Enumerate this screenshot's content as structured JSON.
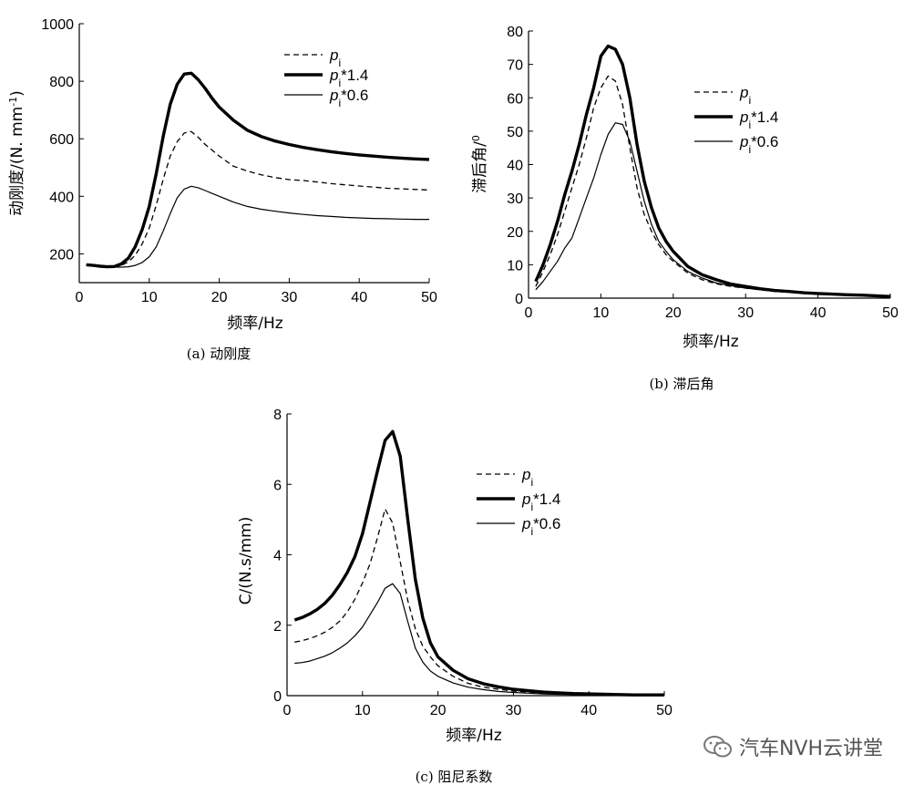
{
  "chart_data": [
    {
      "type": "line",
      "caption": "(a) 动刚度",
      "xlabel": "频率/Hz",
      "ylabel": "动刚度/(N. mm-1)",
      "ylabel_main": "动刚度/(N. mm",
      "ylabel_sup": "-1",
      "ylabel_tail": ")",
      "xlim": [
        0,
        50
      ],
      "ylim": [
        100,
        1000
      ],
      "xticks": [
        0,
        10,
        20,
        30,
        40,
        50
      ],
      "yticks": [
        200,
        400,
        600,
        800,
        1000
      ],
      "legend": [
        "p_i",
        "p_i*1.4",
        "p_i*0.6"
      ],
      "series": [
        {
          "name": "p_i",
          "style": "dashed",
          "x": [
            1,
            2,
            3,
            4,
            5,
            6,
            7,
            8,
            9,
            10,
            11,
            12,
            13,
            14,
            15,
            16,
            17,
            18,
            19,
            20,
            22,
            24,
            26,
            28,
            30,
            32,
            34,
            36,
            38,
            40,
            42,
            44,
            46,
            48,
            50
          ],
          "values": [
            162,
            160,
            157,
            155,
            155,
            160,
            172,
            195,
            235,
            290,
            370,
            460,
            540,
            590,
            620,
            625,
            605,
            580,
            560,
            540,
            505,
            488,
            475,
            465,
            458,
            455,
            450,
            444,
            440,
            436,
            432,
            428,
            426,
            424,
            422
          ]
        },
        {
          "name": "p_i*1.4",
          "style": "thick",
          "x": [
            1,
            2,
            3,
            4,
            5,
            6,
            7,
            8,
            9,
            10,
            11,
            12,
            13,
            14,
            15,
            16,
            17,
            18,
            19,
            20,
            22,
            24,
            26,
            28,
            30,
            32,
            34,
            36,
            38,
            40,
            42,
            44,
            46,
            48,
            50
          ],
          "values": [
            162,
            160,
            157,
            155,
            156,
            165,
            185,
            225,
            285,
            365,
            480,
            610,
            720,
            790,
            825,
            828,
            805,
            775,
            740,
            710,
            665,
            630,
            608,
            592,
            580,
            570,
            562,
            555,
            549,
            544,
            540,
            536,
            533,
            530,
            528
          ]
        },
        {
          "name": "p_i*0.6",
          "style": "thin",
          "x": [
            1,
            2,
            3,
            4,
            5,
            6,
            7,
            8,
            9,
            10,
            11,
            12,
            13,
            14,
            15,
            16,
            17,
            18,
            19,
            20,
            22,
            24,
            26,
            28,
            30,
            32,
            34,
            36,
            38,
            40,
            42,
            44,
            46,
            48,
            50
          ],
          "values": [
            162,
            160,
            157,
            155,
            154,
            154,
            155,
            160,
            170,
            190,
            225,
            280,
            340,
            395,
            425,
            435,
            430,
            420,
            410,
            400,
            380,
            365,
            355,
            348,
            342,
            337,
            333,
            330,
            327,
            325,
            323,
            322,
            321,
            320,
            320
          ]
        }
      ]
    },
    {
      "type": "line",
      "caption": "(b) 滞后角",
      "xlabel": "频率/Hz",
      "ylabel": "滞后角/0",
      "ylabel_main": "滞后角/",
      "ylabel_sup": "0",
      "ylabel_tail": "",
      "xlim": [
        0,
        50
      ],
      "ylim": [
        0,
        80
      ],
      "xticks": [
        0,
        10,
        20,
        30,
        40,
        50
      ],
      "yticks": [
        0,
        10,
        20,
        30,
        40,
        50,
        60,
        70,
        80
      ],
      "legend": [
        "p_i",
        "p_i*1.4",
        "p_i*0.6"
      ],
      "series": [
        {
          "name": "p_i",
          "style": "dashed",
          "x": [
            1,
            2,
            3,
            4,
            5,
            6,
            7,
            8,
            9,
            10,
            11,
            12,
            13,
            14,
            15,
            16,
            17,
            18,
            19,
            20,
            22,
            24,
            26,
            28,
            30,
            32,
            34,
            36,
            38,
            40,
            42,
            44,
            46,
            48,
            50
          ],
          "values": [
            3.5,
            8,
            13,
            19,
            26,
            33,
            40,
            48,
            57,
            63,
            66.5,
            65,
            58,
            45,
            33,
            25,
            20,
            16,
            13,
            11,
            7.5,
            5.5,
            4.3,
            3.5,
            3,
            2.5,
            2,
            1.8,
            1.5,
            1.3,
            1.1,
            1,
            0.8,
            0.6,
            0.4
          ]
        },
        {
          "name": "p_i*1.4",
          "style": "thick",
          "x": [
            1,
            2,
            3,
            4,
            5,
            6,
            7,
            8,
            9,
            10,
            11,
            12,
            13,
            14,
            15,
            16,
            17,
            18,
            19,
            20,
            22,
            24,
            26,
            28,
            30,
            32,
            34,
            36,
            38,
            40,
            42,
            44,
            46,
            48,
            50
          ],
          "values": [
            5,
            10,
            16,
            23,
            31,
            38,
            46,
            55,
            63,
            72.5,
            75.5,
            74.5,
            70,
            60,
            46,
            35,
            27,
            21,
            17,
            14,
            9.5,
            7,
            5.5,
            4.2,
            3.5,
            2.8,
            2.3,
            2,
            1.6,
            1.4,
            1.2,
            1,
            0.9,
            0.7,
            0.5
          ]
        },
        {
          "name": "p_i*0.6",
          "style": "thin",
          "x": [
            1,
            2,
            3,
            4,
            5,
            6,
            7,
            8,
            9,
            10,
            11,
            12,
            13,
            14,
            15,
            16,
            17,
            18,
            19,
            20,
            22,
            24,
            26,
            28,
            30,
            32,
            34,
            36,
            38,
            40,
            42,
            44,
            46,
            48,
            50
          ],
          "values": [
            2.5,
            5,
            8,
            11,
            15,
            18,
            24,
            30,
            36,
            43,
            49,
            52.5,
            52,
            47,
            38,
            29,
            22,
            17,
            14,
            11.5,
            8,
            6,
            4.5,
            3.7,
            3,
            2.5,
            2.1,
            1.8,
            1.5,
            1.3,
            1.1,
            1,
            0.8,
            0.6,
            0.4
          ]
        }
      ]
    },
    {
      "type": "line",
      "caption": "(c) 阻尼系数",
      "xlabel": "频率/Hz",
      "ylabel": "C/(N.s/mm)",
      "ylabel_main": "C/(N.s/mm)",
      "ylabel_sup": "",
      "ylabel_tail": "",
      "xlim": [
        0,
        50
      ],
      "ylim": [
        0,
        8
      ],
      "xticks": [
        0,
        10,
        20,
        30,
        40,
        50
      ],
      "yticks": [
        0,
        2,
        4,
        6,
        8
      ],
      "legend": [
        "p_i",
        "p_i*1.4",
        "p_i*0.6"
      ],
      "series": [
        {
          "name": "p_i",
          "style": "dashed",
          "x": [
            1,
            2,
            3,
            4,
            5,
            6,
            7,
            8,
            9,
            10,
            11,
            12,
            13,
            14,
            15,
            16,
            17,
            18,
            19,
            20,
            22,
            24,
            26,
            28,
            30,
            32,
            34,
            36,
            38,
            40,
            42,
            44,
            46,
            48,
            50
          ],
          "values": [
            1.52,
            1.56,
            1.62,
            1.7,
            1.8,
            1.94,
            2.12,
            2.38,
            2.74,
            3.2,
            3.75,
            4.5,
            5.3,
            4.9,
            3.8,
            2.7,
            1.9,
            1.4,
            1.1,
            0.85,
            0.55,
            0.35,
            0.24,
            0.18,
            0.13,
            0.1,
            0.08,
            0.06,
            0.05,
            0.04,
            0.03,
            0.02,
            0.02,
            0.02,
            0.02
          ]
        },
        {
          "name": "p_i*1.4",
          "style": "thick",
          "x": [
            1,
            2,
            3,
            4,
            5,
            6,
            7,
            8,
            9,
            10,
            11,
            12,
            13,
            14,
            15,
            16,
            17,
            18,
            19,
            20,
            22,
            24,
            26,
            28,
            30,
            32,
            34,
            36,
            38,
            40,
            42,
            44,
            46,
            48,
            50
          ],
          "values": [
            2.15,
            2.22,
            2.32,
            2.45,
            2.62,
            2.85,
            3.15,
            3.5,
            3.95,
            4.6,
            5.5,
            6.4,
            7.25,
            7.5,
            6.8,
            5.0,
            3.3,
            2.2,
            1.5,
            1.1,
            0.72,
            0.48,
            0.34,
            0.25,
            0.18,
            0.14,
            0.1,
            0.08,
            0.06,
            0.05,
            0.04,
            0.03,
            0.02,
            0.02,
            0.02
          ]
        },
        {
          "name": "p_i*0.6",
          "style": "thin",
          "x": [
            1,
            2,
            3,
            4,
            5,
            6,
            7,
            8,
            9,
            10,
            11,
            12,
            13,
            14,
            15,
            16,
            17,
            18,
            19,
            20,
            22,
            24,
            26,
            28,
            30,
            32,
            34,
            36,
            38,
            40,
            42,
            44,
            46,
            48,
            50
          ],
          "values": [
            0.92,
            0.94,
            0.98,
            1.05,
            1.12,
            1.22,
            1.35,
            1.5,
            1.7,
            1.95,
            2.3,
            2.65,
            3.05,
            3.18,
            2.9,
            2.1,
            1.35,
            0.95,
            0.7,
            0.55,
            0.36,
            0.24,
            0.17,
            0.12,
            0.09,
            0.07,
            0.05,
            0.04,
            0.03,
            0.03,
            0.02,
            0.02,
            0.02,
            0.02,
            0.02
          ]
        }
      ]
    }
  ],
  "legend_labels": {
    "base": "p",
    "sub": "i",
    "suffix_1_4": "*1.4",
    "suffix_0_6": "*0.6"
  },
  "watermark": {
    "icon": "wechat-icon",
    "text": "汽车NVH云讲堂"
  }
}
